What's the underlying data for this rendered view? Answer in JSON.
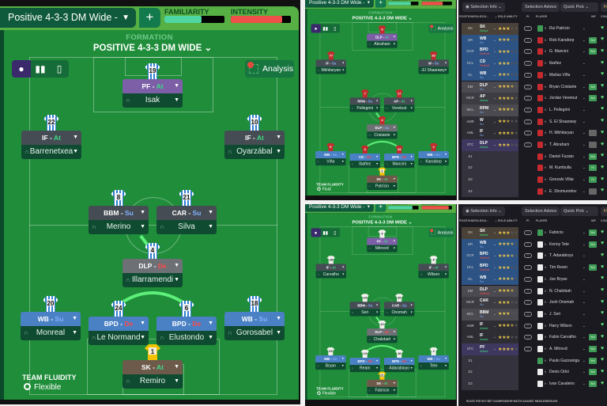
{
  "colors": {
    "accent_green": "#56b044",
    "pitch": "#1f8d39",
    "familiarity": "#4fd6a2",
    "intensity": "#f0504a",
    "at": "#3ddc84",
    "su": "#82b2ff",
    "de": "#ff4a4a"
  },
  "main": {
    "tactic_name": "Positive 4-3-3 DM Wide - Geg...",
    "add_label": "+",
    "familiarity_label": "FAMILIARITY",
    "familiarity_level": 0.62,
    "intensity_label": "INTENSITY",
    "intensity_level": 0.86,
    "formation_label": "FORMATION",
    "formation_title": "POSITIVE 4-3-3 DM WIDE ⌄",
    "analysis_label": "Analysis",
    "fluidity_label": "TEAM FLUIDITY",
    "fluidity_value": "Flexible",
    "kit": "striped",
    "players": [
      {
        "num": "19",
        "role": "PF",
        "duty": "At",
        "name": "Isak",
        "role_bg": "#7d5fa8"
      },
      {
        "num": "22",
        "role": "IF",
        "duty": "At",
        "name": "Barrenetxea",
        "role_bg": "#464c54"
      },
      {
        "num": "10",
        "role": "IF",
        "duty": "At",
        "name": "Oyarzábal",
        "role_bg": "#464c54"
      },
      {
        "num": "8",
        "role": "BBM",
        "duty": "Su",
        "name": "Merino",
        "role_bg": "#464c54"
      },
      {
        "num": "21",
        "role": "CAR",
        "duty": "Su",
        "name": "Silva",
        "role_bg": "#464c54"
      },
      {
        "num": "4",
        "role": "DLP",
        "duty": "De",
        "name": "Illarramendi",
        "role_bg": "#6d7075"
      },
      {
        "num": "20",
        "role": "WB",
        "duty": "Su",
        "name": "Monreal",
        "role_bg": "#4a80c4"
      },
      {
        "num": "24",
        "role": "BPD",
        "duty": "De",
        "name": "Le Normand",
        "role_bg": "#4a80c4"
      },
      {
        "num": "6",
        "role": "BPD",
        "duty": "De",
        "name": "Elustondo",
        "role_bg": "#4a80c4"
      },
      {
        "num": "18",
        "role": "WB",
        "duty": "Su",
        "name": "Gorosabel",
        "role_bg": "#4a80c4"
      },
      {
        "num": "1",
        "role": "SK",
        "duty": "At",
        "name": "Remiro",
        "role_bg": "#6e5a4a"
      }
    ]
  },
  "mini_top": {
    "tactic_name": "Positive 4-3-3 DM Wide - Tiki-...",
    "add_label": "+",
    "familiarity_label": "FAMILIARITY",
    "familiarity_level": 0.75,
    "intensity_label": "INTENSITY",
    "intensity_level": 0.7,
    "formation_label": "FORMATION",
    "formation_title": "POSITIVE 4-3-3 DM WIDE ⌄",
    "analysis_label": "Analysis",
    "fluidity_label": "TEAM FLUIDITY",
    "fluidity_value": "Fluid",
    "kit": "red",
    "players": [
      {
        "num": "9",
        "role": "DLP",
        "duty": "At",
        "name": "Abraham",
        "role_bg": "#7d5fa8"
      },
      {
        "num": "77",
        "role": "IF",
        "duty": "Su",
        "name": "Mkhitaryan",
        "role_bg": "#464c54"
      },
      {
        "num": "92",
        "role": "W",
        "duty": "Su",
        "name": "El Shaarawy",
        "role_bg": "#464c54"
      },
      {
        "num": "7",
        "role": "RPM",
        "duty": "Su",
        "name": "Pellegrini",
        "role_bg": "#464c54"
      },
      {
        "num": "17",
        "role": "AP",
        "duty": "At",
        "name": "Veretout",
        "role_bg": "#464c54"
      },
      {
        "num": "4",
        "role": "DLP",
        "duty": "Su",
        "name": "Cristante",
        "role_bg": "#6d7075"
      },
      {
        "num": "5",
        "role": "WB",
        "duty": "Su",
        "name": "Viña",
        "role_bg": "#4a80c4"
      },
      {
        "num": "3",
        "role": "CD",
        "duty": "De",
        "name": "Ibañez",
        "role_bg": "#4a80c4"
      },
      {
        "num": "23",
        "role": "BPD",
        "duty": "De",
        "name": "Mancini",
        "role_bg": "#4a80c4"
      },
      {
        "num": "2",
        "role": "WB",
        "duty": "Su",
        "name": "Karsdorp",
        "role_bg": "#4a80c4"
      },
      {
        "num": "1",
        "role": "SK",
        "duty": "At",
        "name": "Patrício",
        "role_bg": "#6e5a4a"
      }
    ]
  },
  "mini_bottom": {
    "tactic_name": "Positive 4-3-3 DM Wide - Geg...",
    "add_label": "+",
    "familiarity_label": "FAMILIARITY",
    "familiarity_level": 0.8,
    "intensity_label": "INTENSITY",
    "intensity_level": 0.9,
    "formation_label": "FORMATION",
    "formation_title": "POSITIVE 4-3-3 DM WIDE ⌄",
    "analysis_label": "Analysis",
    "fluidity_label": "TEAM FLUIDITY",
    "fluidity_value": "Flexible",
    "kit": "white",
    "players": [
      {
        "num": "9",
        "role": "PF",
        "duty": "At",
        "name": "Mitrović",
        "role_bg": "#7d5fa8"
      },
      {
        "num": "28",
        "role": "IF",
        "duty": "At",
        "name": "Carvalho",
        "role_bg": "#464c54"
      },
      {
        "num": "8",
        "role": "IF",
        "duty": "At",
        "name": "Wilson",
        "role_bg": "#464c54"
      },
      {
        "num": "24",
        "role": "BBM",
        "duty": "Su",
        "name": "Seri",
        "role_bg": "#464c54"
      },
      {
        "num": "25",
        "role": "CAR",
        "duty": "Su",
        "name": "Onomah",
        "role_bg": "#464c54"
      },
      {
        "num": "12",
        "role": "DLP",
        "duty": "De",
        "name": "Chalobah",
        "role_bg": "#6d7075"
      },
      {
        "num": "23",
        "role": "WB",
        "duty": "Su",
        "name": "Bryan",
        "role_bg": "#4a80c4"
      },
      {
        "num": "13",
        "role": "BPD",
        "duty": "De",
        "name": "Ream",
        "role_bg": "#4a80c4"
      },
      {
        "num": "16",
        "role": "BPD",
        "duty": "De",
        "name": "Adarabioyo",
        "role_bg": "#4a80c4"
      },
      {
        "num": "2",
        "role": "WB",
        "duty": "Su",
        "name": "Tete",
        "role_bg": "#4a80c4"
      },
      {
        "num": "21",
        "role": "SK",
        "duty": "At",
        "name": "Fabricio",
        "role_bg": "#6e5a4a"
      }
    ]
  },
  "list_common": {
    "selection_info": "◉ Selection Info ⌄",
    "selection_advice": "Selection Advice",
    "quick_pick": "Quick Pick  ⌄",
    "filter": "Fi",
    "headers": {
      "position": "POSITION/ROLE/DU...",
      "role_ability": "⌄ ROLE ABILITY",
      "pi": "PI",
      "player": "PLAYER",
      "inf": "INF",
      "con": "CON"
    }
  },
  "list_top": {
    "kit_color": "#c62a2e",
    "rows": [
      {
        "pos": "GK",
        "role": "SK",
        "duty": "Attack",
        "stars": 3,
        "name": "Rui Patrício",
        "inf": "",
        "pos_bg": "#4a4238"
      },
      {
        "pos": "DR",
        "role": "WB",
        "duty": "Su",
        "stars": 3,
        "name": "Rick Karsdorp",
        "inf": "Wnt",
        "pos_bg": "#2c5384"
      },
      {
        "pos": "DCR",
        "role": "BPD",
        "duty": "Defend",
        "stars": 3,
        "name": "G. Mancini",
        "inf": "Wnt",
        "pos_bg": "#2c5384"
      },
      {
        "pos": "DCL",
        "role": "CD",
        "duty": "Defend",
        "stars": 3,
        "name": "Ibañez",
        "inf": "",
        "pos_bg": "#2c5384"
      },
      {
        "pos": "DL",
        "role": "WB",
        "duty": "Su",
        "stars": 2.5,
        "name": "Matías Viña",
        "inf": "",
        "pos_bg": "#2c5384"
      },
      {
        "pos": "DM",
        "role": "DLP",
        "duty": "Su",
        "stars": 3.5,
        "name": "Bryan Cristante",
        "inf": "Wnt",
        "pos_bg": "#4a4a50"
      },
      {
        "pos": "MCR",
        "role": "AP",
        "duty": "Attack",
        "stars": 3.5,
        "name": "Jordan Veretout",
        "inf": "Wnt",
        "pos_bg": "#3c3c42"
      },
      {
        "pos": "MCL",
        "role": "RPM",
        "duty": "Su",
        "stars": 3.5,
        "name": "L. Pellegrini",
        "inf": "",
        "pos_bg": "#4a4a50"
      },
      {
        "pos": "AMR",
        "role": "W",
        "duty": "Su",
        "stars": 2.5,
        "name": "S. El Shaarawy",
        "inf": "",
        "pos_bg": "#2e2d34"
      },
      {
        "pos": "AML",
        "role": "IF",
        "duty": "Su",
        "stars": 3.5,
        "name": "H. Mkhitaryan",
        "inf": "Grey",
        "pos_bg": "#2e2d34"
      },
      {
        "pos": "STC",
        "role": "DLP",
        "duty": "Attack",
        "stars": 3,
        "name": "T. Abraham",
        "inf": "Grey",
        "pos_bg": "#3e3860"
      },
      {
        "pos": "S1",
        "role": "",
        "duty": "",
        "stars": 0,
        "name": "Daniel Fuzato",
        "inf": "Wnt",
        "pos_bg": "#34323d"
      },
      {
        "pos": "S2",
        "role": "",
        "duty": "",
        "stars": 0,
        "name": "M. Kumbulla",
        "inf": "Fit",
        "pos_bg": "#34323d"
      },
      {
        "pos": "S3",
        "role": "",
        "duty": "",
        "stars": 0,
        "name": "Gonzalo Villar",
        "inf": "Fit",
        "pos_bg": "#34323d"
      },
      {
        "pos": "S4",
        "role": "",
        "duty": "",
        "stars": 0,
        "name": "E. Shomurodov",
        "inf": "Grey",
        "pos_bg": "#34323d"
      }
    ]
  },
  "list_bottom": {
    "kit_color": "#eeeeee",
    "rows": [
      {
        "pos": "GK",
        "role": "SK",
        "duty": "Attack",
        "stars": 3,
        "name": "Fabricio",
        "inf": "Wnt",
        "pos_bg": "#4a4238"
      },
      {
        "pos": "DR",
        "role": "WB",
        "duty": "Su",
        "stars": 3.5,
        "name": "Kenny Tete",
        "inf": "Wnt",
        "pos_bg": "#2c5384"
      },
      {
        "pos": "DCR",
        "role": "BPD",
        "duty": "Defend",
        "stars": 3.5,
        "name": "T. Adarabioyo",
        "inf": "",
        "pos_bg": "#2c5384"
      },
      {
        "pos": "DCL",
        "role": "BPD",
        "duty": "Defend",
        "stars": 3,
        "name": "Tim Ream",
        "inf": "Wnt",
        "pos_bg": "#2c5384"
      },
      {
        "pos": "DL",
        "role": "WB",
        "duty": "Su",
        "stars": 3.5,
        "name": "Joe Bryan",
        "inf": "",
        "pos_bg": "#2c5384"
      },
      {
        "pos": "DM",
        "role": "DLP",
        "duty": "Defend",
        "stars": 3.5,
        "name": "N. Chalobah",
        "inf": "",
        "pos_bg": "#4a4a50"
      },
      {
        "pos": "MCR",
        "role": "CAR",
        "duty": "Su",
        "stars": 3,
        "name": "Josh Onomah",
        "inf": "",
        "pos_bg": "#3c3c42"
      },
      {
        "pos": "MCL",
        "role": "BBM",
        "duty": "Su",
        "stars": 3,
        "name": "J. Seri",
        "inf": "",
        "pos_bg": "#4a4a50"
      },
      {
        "pos": "AMR",
        "role": "IF",
        "duty": "Attack",
        "stars": 3.5,
        "name": "Harry Wilson",
        "inf": "",
        "pos_bg": "#2e2d34"
      },
      {
        "pos": "AML",
        "role": "IF",
        "duty": "Attack",
        "stars": 3,
        "name": "Fabio Carvalho",
        "inf": "Wnt",
        "pos_bg": "#2e2d34"
      },
      {
        "pos": "STC",
        "role": "PF",
        "duty": "Attack",
        "stars": 3.5,
        "name": "A. Mitrović",
        "inf": "Wnt",
        "pos_bg": "#3e3860"
      },
      {
        "pos": "S1",
        "role": "",
        "duty": "",
        "stars": 0,
        "name": "Paulo Gazzaniga",
        "inf": "Wnt",
        "pos_bg": "#34323d"
      },
      {
        "pos": "S2",
        "role": "",
        "duty": "",
        "stars": 0,
        "name": "Denis Odoi",
        "inf": "Wnt",
        "pos_bg": "#34323d"
      },
      {
        "pos": "S3",
        "role": "",
        "duty": "",
        "stars": 0,
        "name": "Ivan Cavaleiro",
        "inf": "Wnt",
        "pos_bg": "#34323d"
      }
    ],
    "footnote": "RULES FOR SKY BET CHAMPIONSHIP MATCH AGAINST MIDDLESBROUGH"
  }
}
